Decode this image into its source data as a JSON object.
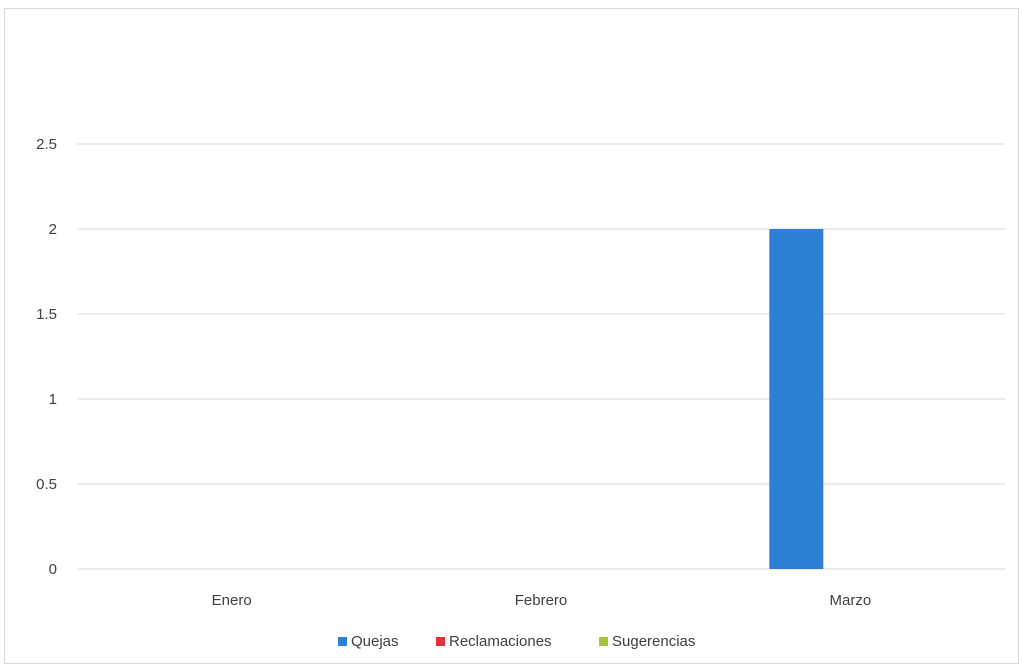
{
  "chart_data": {
    "type": "bar",
    "title": "",
    "xlabel": "",
    "ylabel": "",
    "categories": [
      "Enero",
      "Febrero",
      "Marzo"
    ],
    "series": [
      {
        "name": "Quejas",
        "color": "#2e7fd6",
        "values": [
          0,
          0,
          2
        ]
      },
      {
        "name": "Reclamaciones",
        "color": "#e0303a",
        "values": [
          0,
          0,
          0
        ]
      },
      {
        "name": "Sugerencias",
        "color": "#a6c63a",
        "values": [
          0,
          0,
          0
        ]
      }
    ],
    "ylim": [
      0,
      2.5
    ],
    "yticks": [
      0,
      0.5,
      1,
      1.5,
      2,
      2.5
    ],
    "ytick_labels": [
      "0",
      "0.5",
      "1",
      "1.5",
      "2",
      "2.5"
    ],
    "grid": true,
    "legend_position": "bottom",
    "gridline_color": "#d9d9d9"
  }
}
